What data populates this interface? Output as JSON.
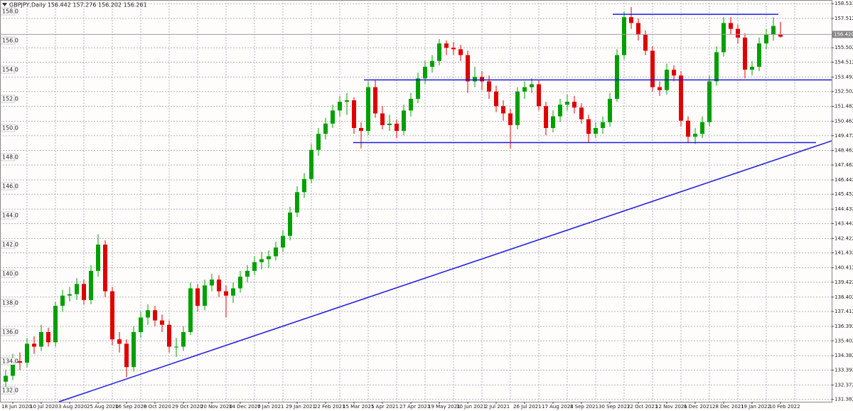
{
  "chart_data": {
    "type": "candlestick",
    "title": "GBPJPY,Daily  156.442 157.276 156.202 156.261",
    "categories": [
      null,
      "18 Jun 2020",
      null,
      null,
      null,
      "10 Jul 2020",
      null,
      null,
      null,
      "3 Aug 2020",
      null,
      null,
      null,
      "25 Aug 2020",
      null,
      null,
      null,
      "16 Sep 2020",
      null,
      null,
      null,
      "8 Oct 2020",
      null,
      null,
      null,
      "29 Oct 2020",
      null,
      null,
      null,
      "20 Nov 2020",
      null,
      null,
      null,
      "14 Dec 2020",
      null,
      null,
      null,
      "7 Jan 2021",
      null,
      null,
      null,
      "29 Jan 2021",
      null,
      null,
      null,
      "22 Feb 2021",
      null,
      null,
      null,
      "15 Mar 2021",
      null,
      null,
      null,
      "5 Apr 2021",
      null,
      null,
      null,
      "27 Apr 2021",
      null,
      null,
      null,
      "19 May 2021",
      null,
      null,
      null,
      "10 Jun 2021",
      null,
      null,
      null,
      "2 Jul 2021",
      null,
      null,
      null,
      "26 Jul 2021",
      null,
      null,
      null,
      "17 Aug 2021",
      null,
      null,
      null,
      "8 Sep 2021",
      null,
      null,
      null,
      "30 Sep 2021",
      null,
      null,
      null,
      "22 Oct 2021",
      null,
      null,
      null,
      "12 Nov 2021",
      null,
      null,
      null,
      "6 Dec 2021",
      null,
      null,
      null,
      "28 Dec 2021",
      null,
      null,
      null,
      "19 Jan 2022",
      null,
      null,
      null,
      "10 Feb 2022"
    ],
    "open": [
      132.6,
      133.0,
      134.0,
      133.9,
      135.2,
      135.0,
      136.0,
      135.3,
      137.8,
      138.5,
      138.6,
      139.3,
      138.2,
      140.2,
      142.0,
      138.8,
      135.5,
      135.2,
      133.6,
      136.0,
      137.0,
      137.5,
      136.8,
      136.5,
      135.0,
      135.0,
      136.0,
      139.0,
      137.8,
      139.2,
      139.6,
      138.8,
      138.5,
      139.0,
      139.8,
      140.2,
      140.8,
      141.0,
      141.2,
      141.8,
      142.6,
      144.2,
      145.6,
      146.5,
      148.5,
      149.6,
      150.3,
      151.2,
      151.8,
      151.9,
      150.0,
      149.8,
      152.8,
      151.0,
      150.2,
      150.3,
      149.8,
      151.2,
      152.0,
      153.4,
      154.2,
      154.6,
      155.8,
      155.5,
      155.4,
      155.0,
      153.2,
      153.5,
      153.2,
      152.5,
      151.5,
      151.0,
      150.2,
      152.5,
      152.8,
      153.0,
      151.5,
      150.0,
      150.8,
      151.6,
      151.8,
      151.4,
      150.6,
      149.6,
      150.0,
      150.4,
      152.0,
      155.0,
      157.6,
      157.2,
      156.4,
      155.3,
      152.8,
      152.6,
      154.0,
      153.6,
      150.5,
      149.4,
      149.6,
      150.4,
      153.2,
      155.2,
      157.2,
      156.8,
      156.2,
      154.0,
      154.2,
      155.8,
      156.4,
      156.442
    ],
    "high": [
      133.4,
      134.5,
      134.6,
      135.6,
      135.7,
      136.5,
      136.3,
      138.1,
      138.9,
      139.1,
      139.7,
      139.6,
      140.6,
      142.7,
      142.3,
      139.1,
      136.0,
      135.5,
      136.4,
      137.4,
      137.9,
      137.8,
      137.2,
      136.8,
      135.6,
      136.4,
      139.4,
      139.3,
      139.6,
      140.0,
      139.9,
      139.2,
      139.4,
      140.2,
      140.6,
      141.2,
      141.5,
      141.6,
      142.2,
      143.0,
      144.6,
      146.0,
      146.9,
      148.9,
      150.0,
      150.7,
      151.6,
      152.2,
      152.4,
      152.1,
      150.4,
      153.2,
      153.3,
      151.5,
      150.9,
      150.6,
      151.6,
      152.4,
      153.8,
      154.6,
      155.0,
      156.1,
      156.0,
      155.9,
      155.7,
      155.3,
      154.2,
      153.9,
      153.6,
      152.9,
      151.9,
      151.3,
      152.8,
      153.2,
      153.4,
      153.3,
      151.8,
      151.2,
      152.0,
      152.3,
      152.2,
      151.7,
      150.9,
      150.4,
      150.8,
      152.4,
      155.4,
      158.0,
      158.3,
      157.5,
      156.7,
      155.6,
      153.2,
      154.4,
      154.3,
      153.9,
      150.8,
      150.0,
      150.8,
      153.6,
      155.6,
      157.6,
      157.6,
      157.1,
      156.5,
      154.6,
      156.2,
      156.8,
      157.6,
      157.276
    ],
    "low": [
      132.1,
      132.7,
      133.4,
      133.6,
      134.5,
      134.7,
      135.0,
      135.0,
      137.4,
      138.1,
      138.2,
      137.9,
      137.9,
      139.8,
      138.4,
      135.1,
      134.6,
      132.9,
      133.3,
      135.6,
      136.5,
      136.4,
      136.0,
      134.6,
      134.3,
      134.7,
      135.8,
      137.4,
      137.5,
      138.8,
      138.4,
      137.0,
      138.0,
      138.7,
      139.4,
      139.9,
      140.3,
      140.4,
      140.9,
      141.5,
      142.3,
      143.9,
      145.2,
      146.2,
      148.1,
      149.2,
      150.0,
      150.8,
      150.9,
      149.6,
      148.6,
      149.5,
      150.7,
      149.9,
      149.8,
      149.3,
      149.5,
      150.8,
      151.7,
      153.0,
      153.8,
      154.3,
      155.0,
      155.0,
      154.6,
      152.4,
      152.8,
      152.6,
      152.0,
      151.1,
      150.5,
      148.6,
      149.9,
      152.0,
      152.4,
      151.2,
      149.5,
      149.7,
      150.4,
      151.2,
      151.0,
      150.3,
      149.0,
      149.3,
      149.6,
      150.1,
      151.8,
      154.7,
      156.8,
      156.0,
      155.0,
      152.5,
      152.2,
      152.3,
      153.2,
      150.1,
      149.0,
      148.9,
      149.3,
      150.1,
      152.9,
      154.9,
      156.4,
      155.8,
      153.4,
      153.6,
      153.9,
      155.4,
      156.0,
      156.202
    ],
    "close": [
      133.0,
      134.0,
      133.9,
      135.2,
      135.0,
      136.0,
      135.3,
      137.8,
      138.5,
      138.6,
      139.3,
      138.2,
      140.2,
      142.0,
      138.8,
      135.5,
      135.2,
      133.6,
      136.0,
      137.0,
      137.5,
      136.8,
      136.5,
      135.0,
      135.0,
      136.0,
      139.0,
      137.8,
      139.2,
      139.6,
      138.8,
      138.5,
      139.0,
      139.8,
      140.2,
      140.8,
      141.0,
      141.2,
      141.8,
      142.6,
      144.2,
      145.6,
      146.5,
      148.5,
      149.6,
      150.3,
      151.2,
      151.8,
      151.9,
      150.0,
      149.8,
      152.8,
      151.0,
      150.2,
      150.3,
      149.8,
      151.2,
      152.0,
      153.4,
      154.2,
      154.6,
      155.8,
      155.5,
      155.4,
      155.0,
      153.2,
      153.5,
      153.2,
      152.5,
      151.5,
      151.0,
      150.2,
      152.5,
      152.8,
      153.0,
      151.5,
      150.0,
      150.8,
      151.6,
      151.8,
      151.4,
      150.6,
      149.6,
      150.0,
      150.4,
      152.0,
      155.0,
      157.6,
      157.2,
      156.4,
      155.3,
      152.8,
      152.6,
      154.0,
      153.6,
      150.5,
      149.4,
      149.6,
      150.4,
      153.2,
      155.2,
      157.2,
      156.8,
      156.2,
      154.0,
      154.2,
      155.8,
      156.4,
      157.0,
      156.261
    ],
    "up_color": "#00a000",
    "down_color": "#e00000",
    "ylim": [
      131.22,
      158.78
    ],
    "yticks": [
      {
        "value": 158,
        "label": "158.0"
      },
      {
        "value": 156,
        "label": "156.0"
      },
      {
        "value": 154,
        "label": "154.0"
      },
      {
        "value": 152,
        "label": "152.0"
      },
      {
        "value": 150,
        "label": "150.0"
      },
      {
        "value": 148,
        "label": "148.0"
      },
      {
        "value": 146,
        "label": "146.0"
      },
      {
        "value": 144,
        "label": "144.0"
      },
      {
        "value": 142,
        "label": "142.0"
      },
      {
        "value": 140,
        "label": "140.0"
      },
      {
        "value": 138,
        "label": "138.0"
      },
      {
        "value": 136,
        "label": "136.0"
      },
      {
        "value": 134,
        "label": "134.0"
      },
      {
        "value": 132,
        "label": "132.0"
      }
    ],
    "y2lim": [
      131.22,
      158.78
    ],
    "y2ticks": [
      158.531,
      157.512,
      155.502,
      154.512,
      153.492,
      152.502,
      151.482,
      150.462,
      149.472,
      148.462,
      147.462,
      146.442,
      145.452,
      144.432,
      143.442,
      142.422,
      141.432,
      140.412,
      139.422,
      138.402,
      137.412,
      136.392,
      135.402,
      134.382,
      133.392,
      132.372,
      131.382
    ],
    "current_price": {
      "value": 156.42,
      "label": "156.420"
    },
    "grid": true,
    "lines_color": "#1c1cdc",
    "lines": [
      {
        "from": [
          85.4,
          157.8
        ],
        "to": [
          108.7,
          157.8
        ]
      },
      {
        "from": [
          50.4,
          153.3
        ],
        "to": [
          116.2,
          153.3
        ]
      },
      {
        "from": [
          48.9,
          149.0
        ],
        "to": [
          114.0,
          149.0
        ]
      },
      {
        "from": [
          7.5,
          131.22
        ],
        "to": [
          116.2,
          149.12
        ]
      }
    ]
  }
}
